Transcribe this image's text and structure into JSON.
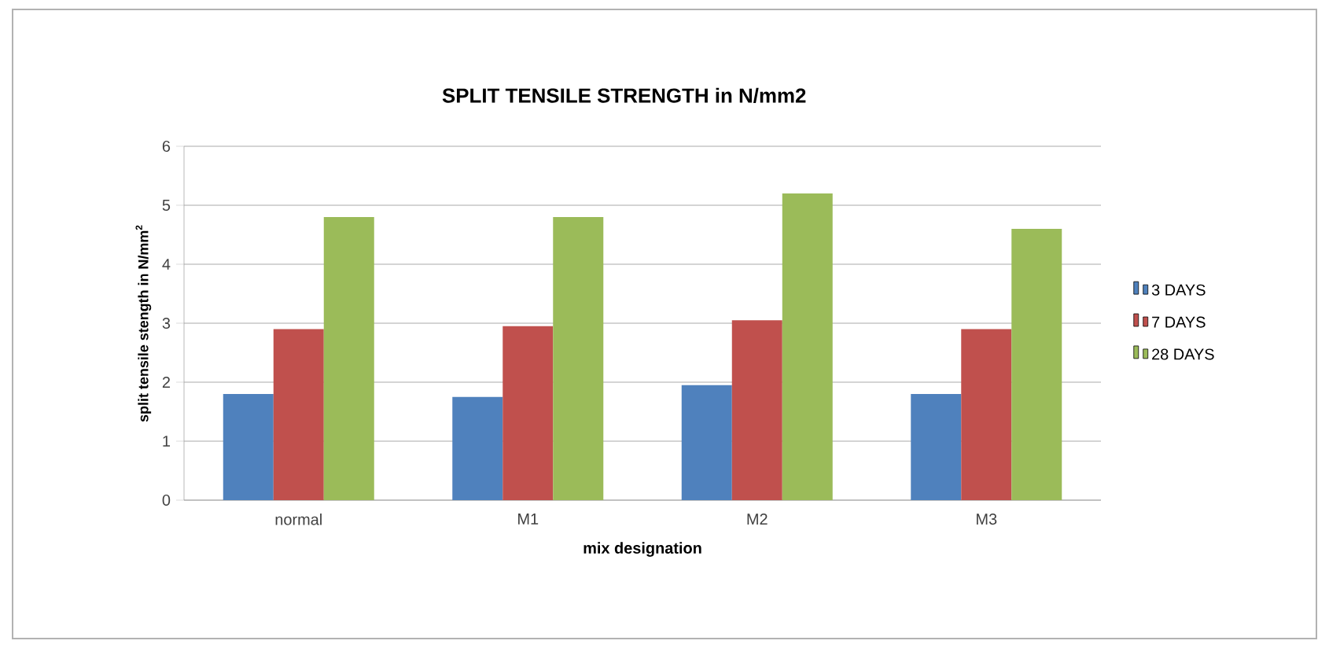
{
  "chart_data": {
    "type": "bar",
    "title": "SPLIT TENSILE STRENGTH in N/mm2",
    "xlabel": "mix designation",
    "ylabel": "split tensile stength in N/mm$^{2}$",
    "categories": [
      "normal",
      "M1",
      "M2",
      "M3"
    ],
    "series": [
      {
        "name": "3 DAYS",
        "color": "#4f81bd",
        "values": [
          1.8,
          1.75,
          1.95,
          1.8
        ]
      },
      {
        "name": "7 DAYS",
        "color": "#c0504d",
        "values": [
          2.9,
          2.95,
          3.05,
          2.9
        ]
      },
      {
        "name": "28 DAYS",
        "color": "#9bbb59",
        "values": [
          4.8,
          4.8,
          5.2,
          4.6
        ]
      }
    ],
    "ylim": [
      0,
      6
    ],
    "yticks": [
      0,
      1,
      2,
      3,
      4,
      5,
      6
    ],
    "grid": "y",
    "legend": "right"
  }
}
